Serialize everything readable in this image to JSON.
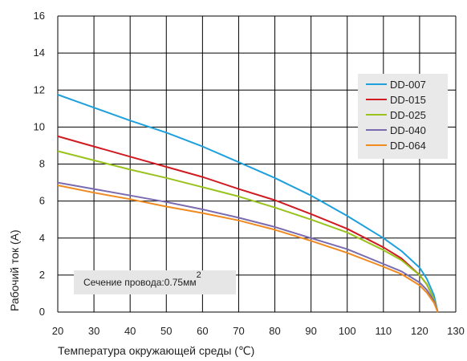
{
  "chart_data": {
    "type": "line",
    "xlabel": "Температура окружающей среды (℃)",
    "ylabel": "Рабочий ток (А)",
    "xlim": [
      20,
      130
    ],
    "ylim": [
      0,
      16
    ],
    "x_ticks": [
      20,
      30,
      40,
      50,
      60,
      70,
      80,
      90,
      100,
      110,
      120,
      130
    ],
    "y_ticks": [
      0,
      2,
      4,
      6,
      8,
      10,
      12,
      14,
      16
    ],
    "grid": true,
    "legend_position": "right",
    "annotation": {
      "text": "Сечение провода:0.75мм",
      "superscript": "2"
    },
    "series": [
      {
        "name": "DD-007",
        "color": "#1ea0dc",
        "x": [
          20,
          30,
          40,
          50,
          60,
          70,
          80,
          90,
          100,
          110,
          115,
          120,
          122,
          124,
          125
        ],
        "y": [
          11.75,
          11.05,
          10.35,
          9.7,
          8.95,
          8.1,
          7.25,
          6.3,
          5.2,
          4.0,
          3.3,
          2.4,
          1.8,
          0.9,
          0.0
        ]
      },
      {
        "name": "DD-015",
        "color": "#d01b22",
        "x": [
          20,
          30,
          40,
          50,
          60,
          70,
          80,
          90,
          100,
          110,
          115,
          120,
          122,
          124,
          125
        ],
        "y": [
          9.5,
          8.95,
          8.4,
          7.85,
          7.3,
          6.65,
          6.05,
          5.3,
          4.5,
          3.5,
          2.9,
          2.0,
          1.5,
          0.7,
          0.0
        ]
      },
      {
        "name": "DD-025",
        "color": "#99c31c",
        "x": [
          20,
          30,
          40,
          50,
          60,
          70,
          80,
          90,
          100,
          110,
          115,
          120,
          122,
          124,
          125
        ],
        "y": [
          8.7,
          8.2,
          7.7,
          7.25,
          6.75,
          6.25,
          5.65,
          5.0,
          4.3,
          3.35,
          2.8,
          2.0,
          1.5,
          0.7,
          0.0
        ]
      },
      {
        "name": "DD-040",
        "color": "#7a6bb0",
        "x": [
          20,
          30,
          40,
          50,
          60,
          70,
          80,
          90,
          100,
          110,
          115,
          120,
          122,
          124,
          125
        ],
        "y": [
          7.0,
          6.65,
          6.3,
          5.95,
          5.55,
          5.1,
          4.6,
          4.0,
          3.4,
          2.6,
          2.2,
          1.6,
          1.2,
          0.6,
          0.0
        ]
      },
      {
        "name": "DD-064",
        "color": "#f08a1e",
        "x": [
          20,
          30,
          40,
          50,
          60,
          70,
          80,
          90,
          100,
          110,
          115,
          120,
          122,
          124,
          125
        ],
        "y": [
          6.85,
          6.45,
          6.1,
          5.7,
          5.35,
          4.95,
          4.45,
          3.85,
          3.2,
          2.45,
          2.05,
          1.45,
          1.05,
          0.5,
          0.0
        ]
      }
    ]
  }
}
